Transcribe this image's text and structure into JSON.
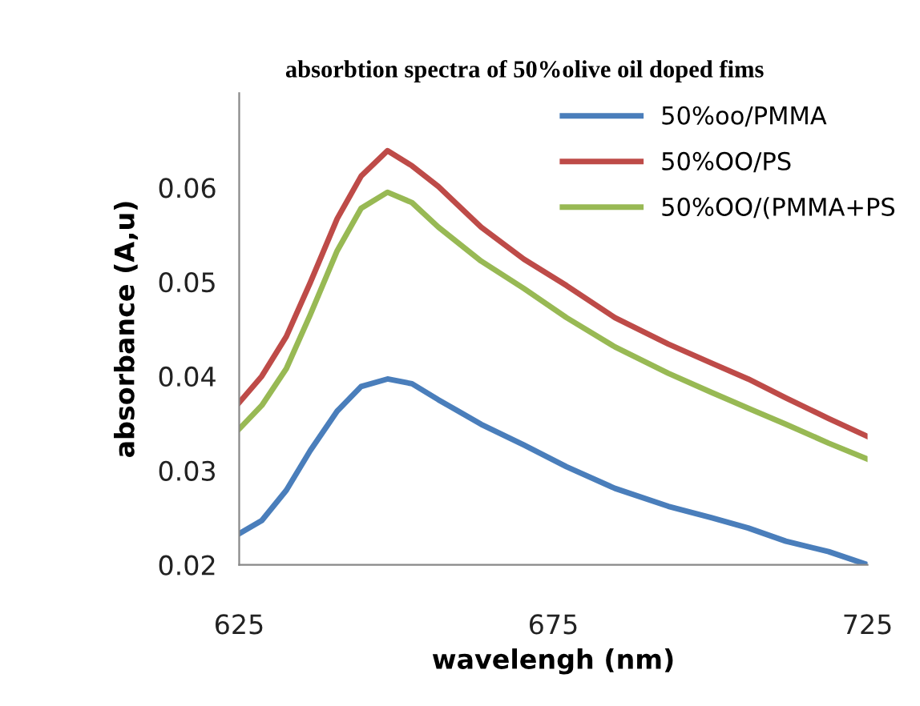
{
  "chart_data": {
    "type": "line",
    "title": "absorbtion spectra of 50%olive oil doped fims",
    "xlabel": "wavelengh (nm)",
    "ylabel": "absorbance (A,u)",
    "x": [
      625,
      628.6,
      632.5,
      636.3,
      640.6,
      644.4,
      648.6,
      652.5,
      656.7,
      663.5,
      670.3,
      677.1,
      684.8,
      693.3,
      700.1,
      706,
      712,
      718.8,
      725
    ],
    "series": [
      {
        "name": "50%oo/PMMA",
        "color": "#4a7ebb",
        "values": [
          0.0233,
          0.0247,
          0.0279,
          0.0321,
          0.0363,
          0.0389,
          0.0397,
          0.0392,
          0.0375,
          0.0349,
          0.0327,
          0.0304,
          0.0281,
          0.0262,
          0.025,
          0.0239,
          0.0225,
          0.0214,
          0.02
        ]
      },
      {
        "name": "50%OO/PS",
        "color": "#be4b48",
        "values": [
          0.0372,
          0.04,
          0.0442,
          0.0499,
          0.0567,
          0.0612,
          0.0639,
          0.0623,
          0.0601,
          0.0558,
          0.0524,
          0.0496,
          0.0462,
          0.0434,
          0.0414,
          0.0397,
          0.0377,
          0.0355,
          0.0336
        ]
      },
      {
        "name": "50%OO/(PMMA+PS",
        "color": "#98b954",
        "values": [
          0.0344,
          0.0369,
          0.0408,
          0.0465,
          0.0533,
          0.0578,
          0.0595,
          0.0584,
          0.0558,
          0.0522,
          0.0493,
          0.0462,
          0.0431,
          0.0403,
          0.0383,
          0.0366,
          0.0349,
          0.0329,
          0.0312
        ]
      }
    ],
    "xlim": [
      625,
      725
    ],
    "xticks": [
      625,
      675,
      725
    ],
    "ylim": [
      0.02,
      0.07
    ],
    "yticks": [
      0.02,
      0.03,
      0.04,
      0.05,
      0.06
    ],
    "grid": false,
    "legend": "top right",
    "marker": "none",
    "line_style": "solid"
  }
}
